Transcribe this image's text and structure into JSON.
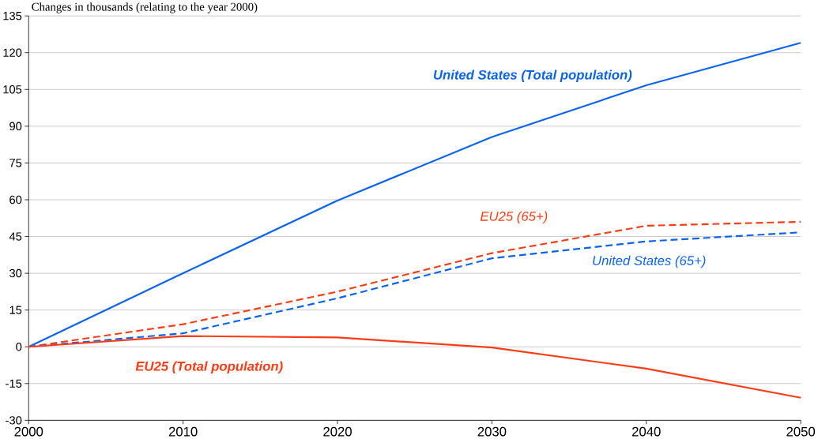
{
  "chart_data": {
    "type": "line",
    "ylabel": "Changes in thousands (relating to the year 2000)",
    "x": [
      2000,
      2010,
      2020,
      2030,
      2040,
      2050
    ],
    "series": [
      {
        "name": "United States (Total population)",
        "color": "#0a64f0",
        "line_style": "solid",
        "values": [
          0,
          30,
          59.7,
          85.6,
          106.7,
          124
        ]
      },
      {
        "name": "EU25 (65+)",
        "color": "#ff3c14",
        "line_style": "dashed",
        "values": [
          0,
          9.2,
          22.5,
          38.2,
          49.4,
          51
        ]
      },
      {
        "name": "United States (65+)",
        "color": "#0a64f0",
        "line_style": "dashed",
        "values": [
          0,
          5.5,
          19.8,
          36.1,
          43,
          46.7
        ]
      },
      {
        "name": "EU25 (Total population)",
        "color": "#ff3c14",
        "line_style": "solid",
        "values": [
          0,
          4.4,
          3.8,
          -0.3,
          -8.9,
          -20.8
        ]
      }
    ],
    "xlim": [
      2000,
      2050
    ],
    "xticks": [
      2000,
      2010,
      2020,
      2030,
      2040,
      2050
    ],
    "ylim": [
      -30,
      135
    ],
    "yticks": [
      -30,
      -15,
      0,
      15,
      30,
      45,
      60,
      75,
      90,
      105,
      120,
      135
    ],
    "grid": "y",
    "marker": "none"
  }
}
